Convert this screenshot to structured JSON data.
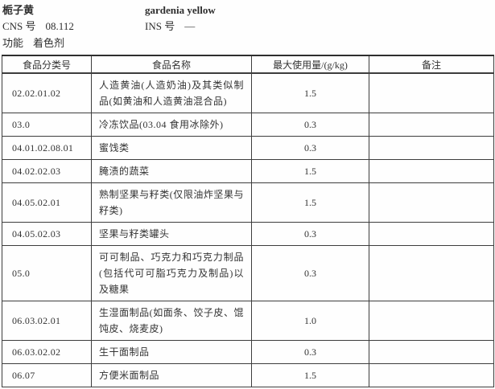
{
  "page": {
    "title_cn": "栀子黄",
    "title_en": "gardenia yellow",
    "cns_label": "CNS 号",
    "cns_value": "08.112",
    "ins_label": "INS 号",
    "ins_value": "—",
    "function_label": "功能",
    "function_value": "着色剂"
  },
  "table": {
    "headers": [
      "食品分类号",
      "食品名称",
      "最大使用量/(g/kg)",
      "备注"
    ],
    "rows": [
      {
        "code": "02.02.01.02",
        "name": "人造黄油(人造奶油)及其类似制品(如黄油和人造黄油混合品)",
        "max": "1.5",
        "note": ""
      },
      {
        "code": "03.0",
        "name": "冷冻饮品(03.04 食用冰除外)",
        "max": "0.3",
        "note": ""
      },
      {
        "code": "04.01.02.08.01",
        "name": "蜜饯类",
        "max": "0.3",
        "note": ""
      },
      {
        "code": "04.02.02.03",
        "name": "腌渍的蔬菜",
        "max": "1.5",
        "note": ""
      },
      {
        "code": "04.05.02.01",
        "name": "熟制坚果与籽类(仅限油炸坚果与籽类)",
        "max": "1.5",
        "note": ""
      },
      {
        "code": "04.05.02.03",
        "name": "坚果与籽类罐头",
        "max": "0.3",
        "note": ""
      },
      {
        "code": "05.0",
        "name": "可可制品、巧克力和巧克力制品(包括代可可脂巧克力及制品)以及糖果",
        "max": "0.3",
        "note": ""
      },
      {
        "code": "06.03.02.01",
        "name": "生湿面制品(如面条、饺子皮、馄饨皮、烧麦皮)",
        "max": "1.0",
        "note": ""
      },
      {
        "code": "06.03.02.02",
        "name": "生干面制品",
        "max": "0.3",
        "note": ""
      },
      {
        "code": "06.07",
        "name": "方便米面制品",
        "max": "1.5",
        "note": ""
      }
    ]
  }
}
